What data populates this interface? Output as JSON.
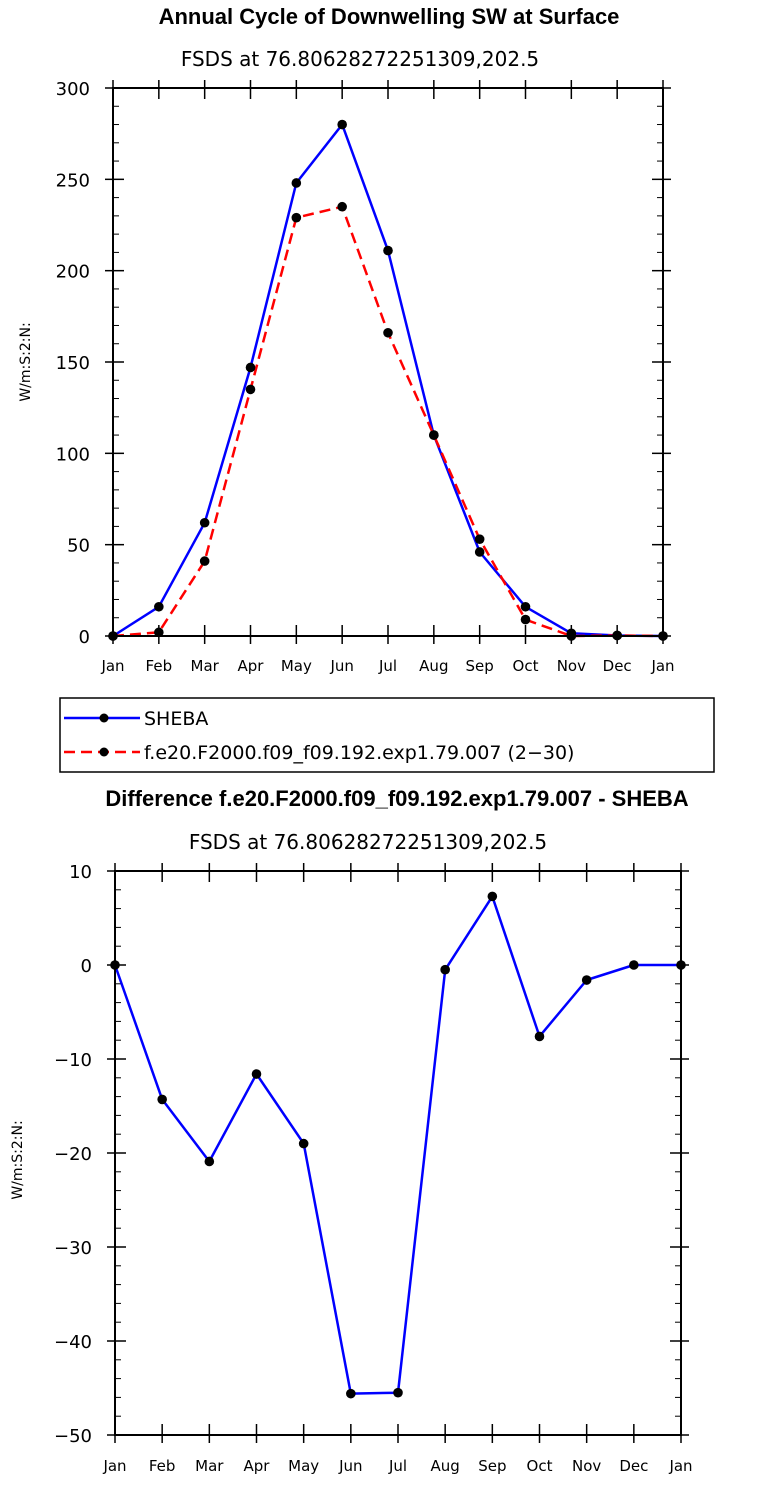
{
  "chart_data": [
    {
      "type": "line",
      "title": "Annual Cycle of Downwelling SW at Surface",
      "subtitle": "FSDS at 76.80628272251309,202.5",
      "ylabel": "W/m:S:2:N:",
      "xlabel": "",
      "categories": [
        "Jan",
        "Feb",
        "Mar",
        "Apr",
        "May",
        "Jun",
        "Jul",
        "Aug",
        "Sep",
        "Oct",
        "Nov",
        "Dec",
        "Jan"
      ],
      "ylim": [
        0,
        300
      ],
      "yticks": [
        0,
        50,
        100,
        150,
        200,
        250,
        300
      ],
      "series": [
        {
          "name": "SHEBA",
          "color": "#0000ff",
          "dash": "solid",
          "values": [
            0,
            16,
            62,
            147,
            248,
            280,
            211,
            110,
            46,
            16,
            1.5,
            0.3,
            0
          ]
        },
        {
          "name": "f.e20.F2000.f09_f09.192.exp1.79.007 (2−30)",
          "color": "#ff0000",
          "dash": "dashed",
          "values": [
            0,
            2,
            41,
            135,
            229,
            235,
            166,
            110,
            53,
            9,
            0,
            0.3,
            0
          ]
        }
      ]
    },
    {
      "type": "line",
      "title": "Difference f.e20.F2000.f09_f09.192.exp1.79.007 - SHEBA",
      "subtitle": "FSDS at 76.80628272251309,202.5",
      "ylabel": "W/m:S:2:N:",
      "xlabel": "",
      "categories": [
        "Jan",
        "Feb",
        "Mar",
        "Apr",
        "May",
        "Jun",
        "Jul",
        "Aug",
        "Sep",
        "Oct",
        "Nov",
        "Dec",
        "Jan"
      ],
      "ylim": [
        -50,
        10
      ],
      "yticks": [
        -50,
        -40,
        -30,
        -20,
        -10,
        0,
        10
      ],
      "series": [
        {
          "name": "",
          "color": "#0000ff",
          "dash": "solid",
          "values": [
            0,
            -14.3,
            -20.9,
            -11.6,
            -19,
            -45.6,
            -45.5,
            -0.5,
            7.3,
            -7.6,
            -1.6,
            0,
            0
          ]
        }
      ]
    }
  ]
}
